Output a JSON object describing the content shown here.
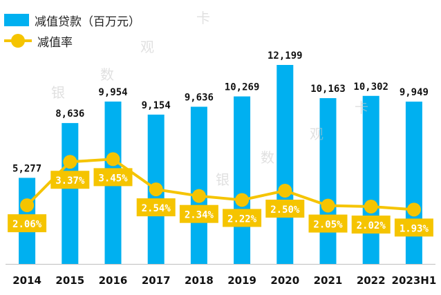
{
  "legend": {
    "bar_label": "减值贷款（百万元）",
    "line_label": "减值率"
  },
  "watermarks": [
    "卡",
    "观",
    "数",
    "银",
    "卡",
    "观",
    "数",
    "银"
  ],
  "colors": {
    "bar": "#00b0f0",
    "line": "#f5c400",
    "label_box": "#f5c400",
    "label_text": "#ffffff",
    "value_text": "#111111",
    "axis": "#bfbfbf"
  },
  "chart_data": {
    "type": "bar",
    "categories": [
      "2014",
      "2015",
      "2016",
      "2017",
      "2018",
      "2019",
      "2020",
      "2021",
      "2022",
      "2023H1"
    ],
    "series": [
      {
        "name": "减值贷款（百万元）",
        "type": "bar",
        "values": [
          5277,
          8636,
          9954,
          9154,
          9636,
          10269,
          12199,
          10163,
          10302,
          9949
        ],
        "labels": [
          "5,277",
          "8,636",
          "9,954",
          "9,154",
          "9,636",
          "10,269",
          "12,199",
          "10,163",
          "10,302",
          "9,949"
        ]
      },
      {
        "name": "减值率",
        "type": "line",
        "values": [
          2.06,
          3.37,
          3.45,
          2.54,
          2.34,
          2.22,
          2.5,
          2.05,
          2.02,
          1.93
        ],
        "labels": [
          "2.06%",
          "3.37%",
          "3.45%",
          "2.54%",
          "2.34%",
          "2.22%",
          "2.50%",
          "2.05%",
          "2.02%",
          "1.93%"
        ]
      }
    ],
    "ylim_bars": [
      0,
      12199
    ],
    "ylim_line": [
      0,
      4.2
    ],
    "grid": false,
    "legend_position": "top-left"
  }
}
